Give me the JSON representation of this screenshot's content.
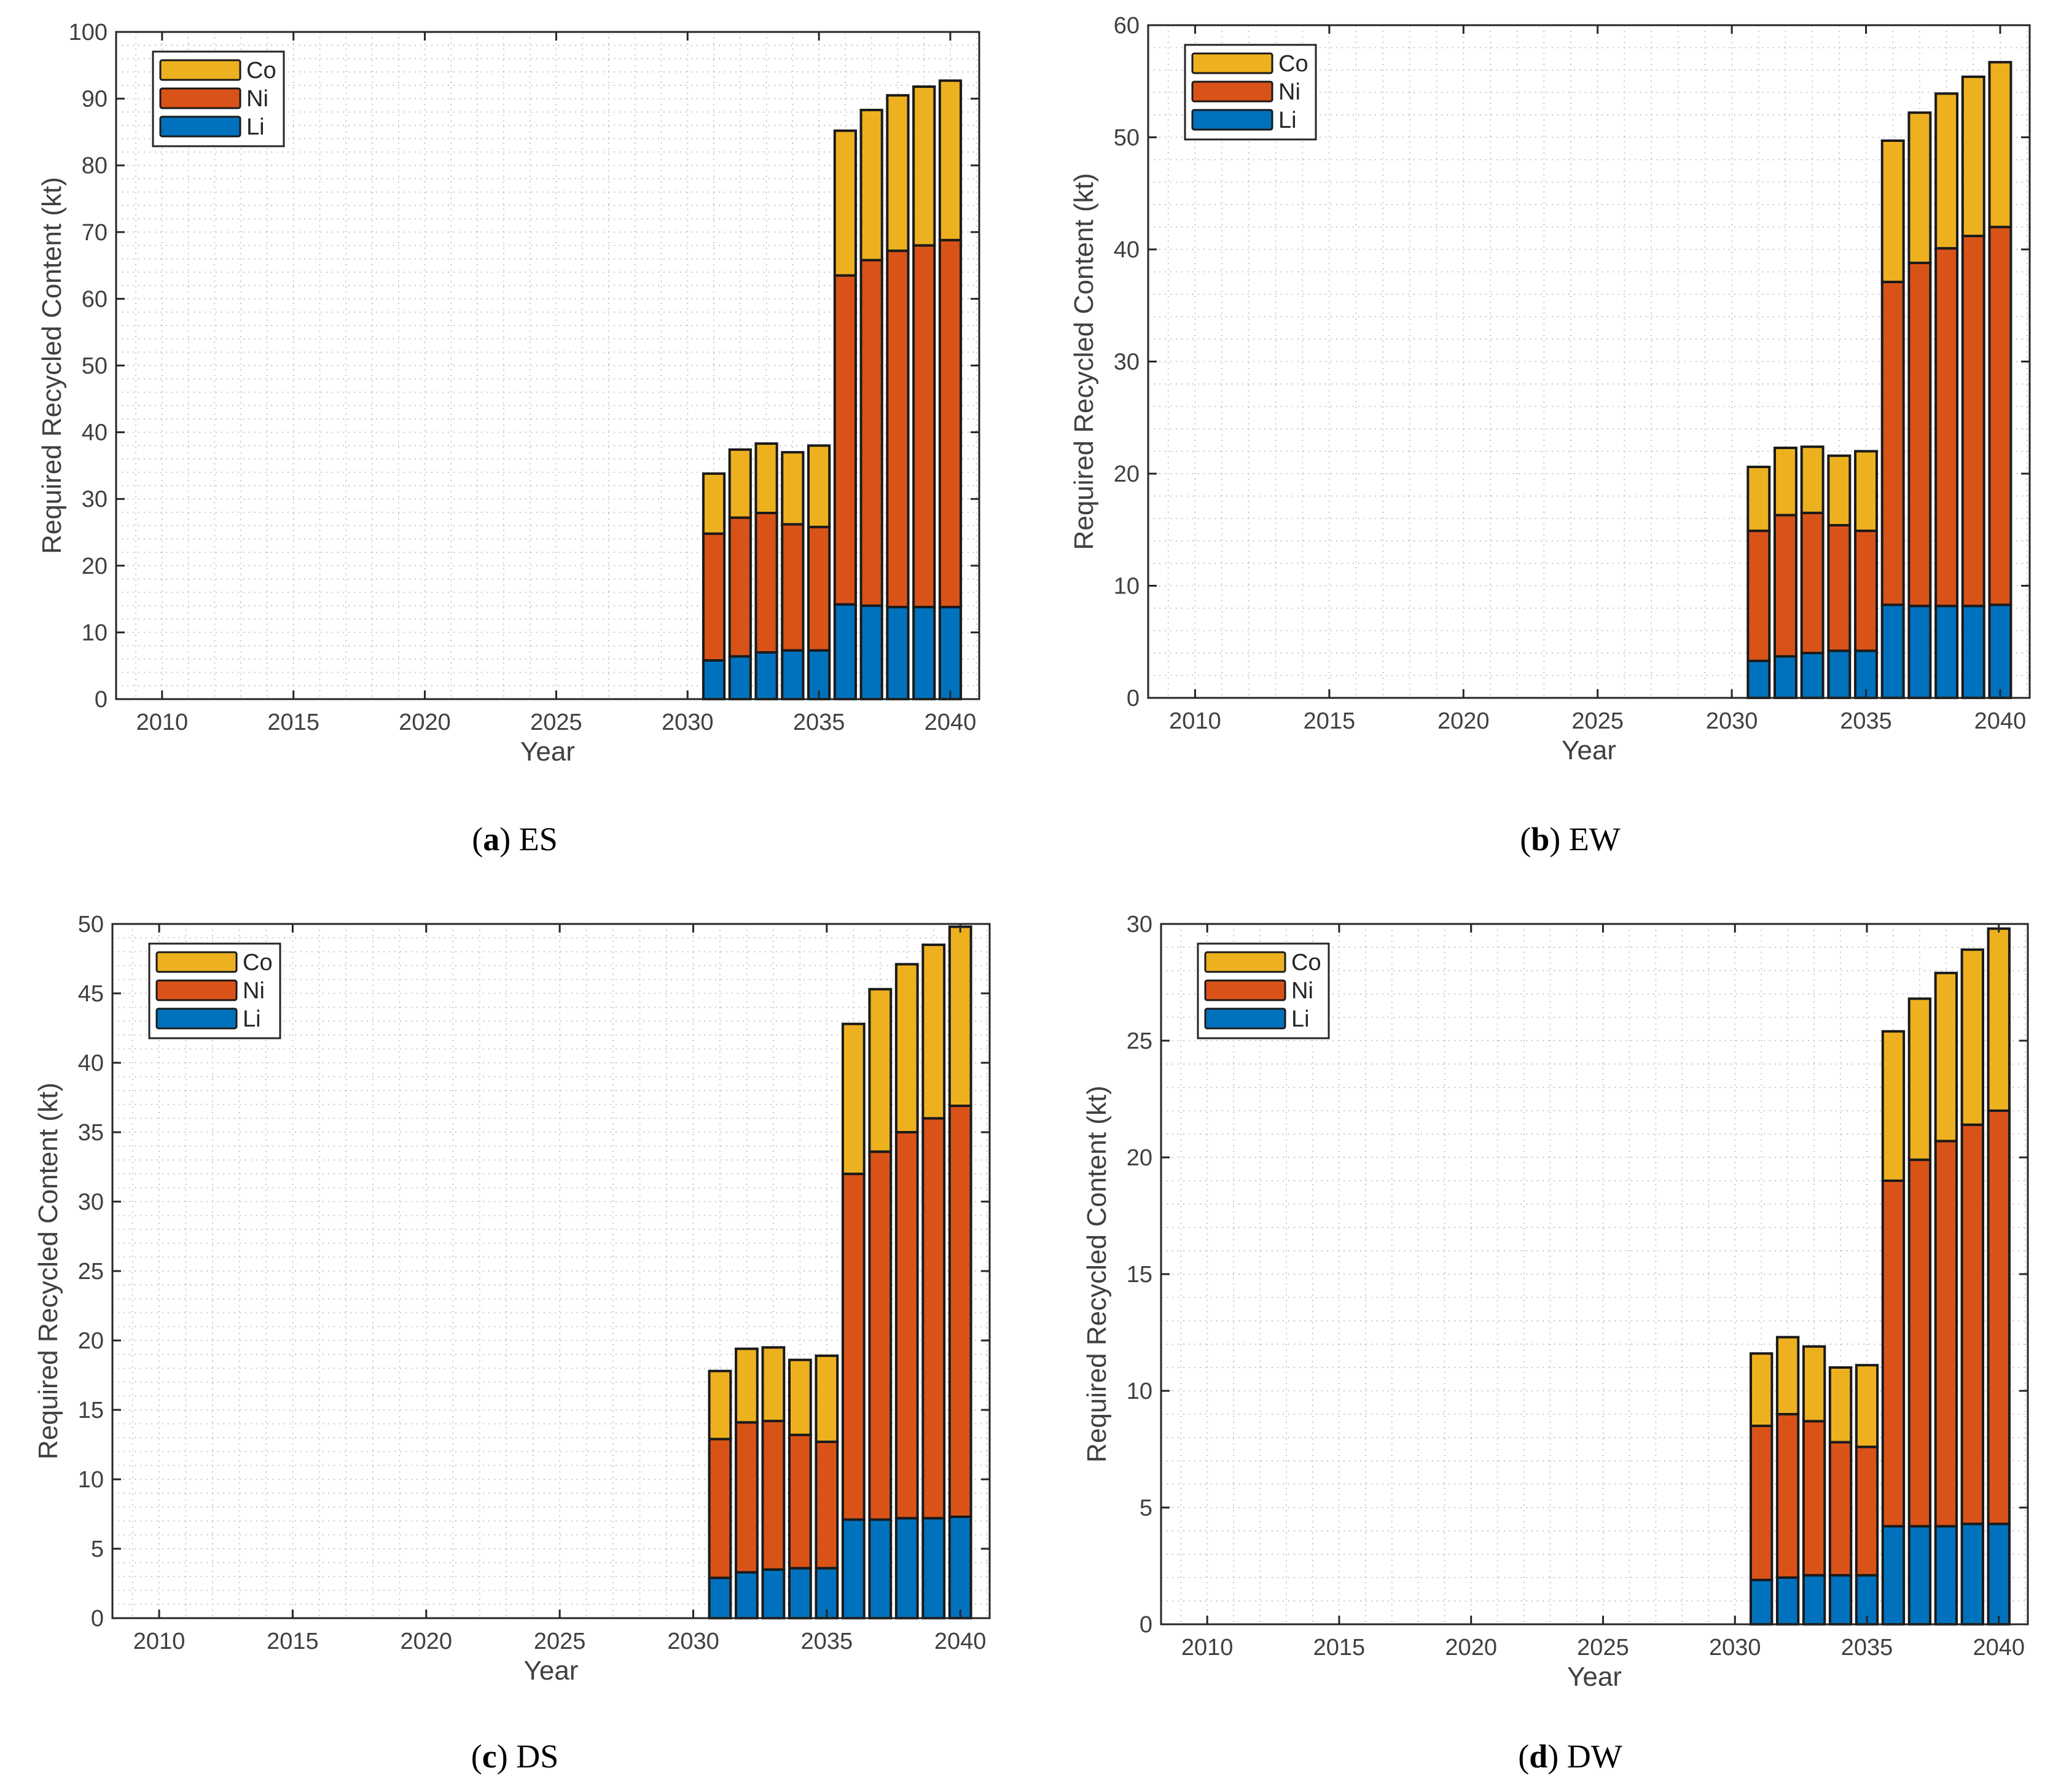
{
  "colors": {
    "Li": "#0072BD",
    "Ni": "#D95319",
    "Co": "#EDB120"
  },
  "legend_order": [
    "Co",
    "Ni",
    "Li"
  ],
  "chart_data": [
    {
      "type": "bar",
      "stacked": true,
      "caption_label": "a",
      "caption_text": "ES",
      "xlabel": "Year",
      "ylabel": "Required Recycled Content (kt)",
      "xlim": [
        2008.25,
        2041.1
      ],
      "ylim": [
        0,
        100
      ],
      "yticks": [
        0,
        10,
        20,
        30,
        40,
        50,
        60,
        70,
        80,
        90,
        100
      ],
      "xticks": [
        2010,
        2015,
        2020,
        2025,
        2030,
        2035,
        2040
      ],
      "grid": "minor-dotted",
      "legend": "top-left",
      "categories": [
        2031,
        2032,
        2033,
        2034,
        2035,
        2036,
        2037,
        2038,
        2039,
        2040
      ],
      "series": [
        {
          "name": "Li",
          "values": [
            5.8,
            6.4,
            7.0,
            7.3,
            7.3,
            14.2,
            14.0,
            13.8,
            13.8,
            13.8
          ]
        },
        {
          "name": "Ni",
          "values": [
            19.0,
            20.8,
            20.9,
            18.9,
            18.5,
            49.3,
            51.8,
            53.4,
            54.2,
            55.0
          ]
        },
        {
          "name": "Co",
          "values": [
            9.0,
            10.2,
            10.4,
            10.8,
            12.2,
            21.7,
            22.5,
            23.3,
            23.8,
            23.9
          ]
        }
      ]
    },
    {
      "type": "bar",
      "stacked": true,
      "caption_label": "b",
      "caption_text": "EW",
      "xlabel": "Year",
      "ylabel": "Required Recycled Content (kt)",
      "xlim": [
        2008.25,
        2041.1
      ],
      "ylim": [
        0,
        60
      ],
      "yticks": [
        0,
        10,
        20,
        30,
        40,
        50,
        60
      ],
      "xticks": [
        2010,
        2015,
        2020,
        2025,
        2030,
        2035,
        2040
      ],
      "grid": "minor-dotted",
      "legend": "top-left",
      "categories": [
        2031,
        2032,
        2033,
        2034,
        2035,
        2036,
        2037,
        2038,
        2039,
        2040
      ],
      "series": [
        {
          "name": "Li",
          "values": [
            3.3,
            3.7,
            4.0,
            4.2,
            4.2,
            8.3,
            8.2,
            8.2,
            8.2,
            8.3
          ]
        },
        {
          "name": "Ni",
          "values": [
            11.6,
            12.6,
            12.5,
            11.2,
            10.7,
            28.8,
            30.6,
            31.9,
            33.0,
            33.7
          ]
        },
        {
          "name": "Co",
          "values": [
            5.7,
            6.0,
            5.9,
            6.2,
            7.1,
            12.6,
            13.4,
            13.8,
            14.2,
            14.7
          ]
        }
      ]
    },
    {
      "type": "bar",
      "stacked": true,
      "caption_label": "c",
      "caption_text": "DS",
      "xlabel": "Year",
      "ylabel": "Required Recycled Content (kt)",
      "xlim": [
        2008.25,
        2041.1
      ],
      "ylim": [
        0,
        50
      ],
      "yticks": [
        0,
        5,
        10,
        15,
        20,
        25,
        30,
        35,
        40,
        45,
        50
      ],
      "xticks": [
        2010,
        2015,
        2020,
        2025,
        2030,
        2035,
        2040
      ],
      "grid": "minor-dotted",
      "legend": "top-left",
      "categories": [
        2031,
        2032,
        2033,
        2034,
        2035,
        2036,
        2037,
        2038,
        2039,
        2040
      ],
      "series": [
        {
          "name": "Li",
          "values": [
            2.9,
            3.3,
            3.5,
            3.6,
            3.6,
            7.1,
            7.1,
            7.2,
            7.2,
            7.3
          ]
        },
        {
          "name": "Ni",
          "values": [
            10.0,
            10.8,
            10.7,
            9.6,
            9.1,
            24.9,
            26.5,
            27.8,
            28.8,
            29.6
          ]
        },
        {
          "name": "Co",
          "values": [
            4.9,
            5.3,
            5.3,
            5.4,
            6.2,
            10.8,
            11.7,
            12.1,
            12.5,
            12.9
          ]
        }
      ]
    },
    {
      "type": "bar",
      "stacked": true,
      "caption_label": "d",
      "caption_text": "DW",
      "xlabel": "Year",
      "ylabel": "Required Recycled Content (kt)",
      "xlim": [
        2008.25,
        2041.1
      ],
      "ylim": [
        0,
        30
      ],
      "yticks": [
        0,
        5,
        10,
        15,
        20,
        25,
        30
      ],
      "xticks": [
        2010,
        2015,
        2020,
        2025,
        2030,
        2035,
        2040
      ],
      "grid": "minor-dotted",
      "legend": "top-left",
      "categories": [
        2031,
        2032,
        2033,
        2034,
        2035,
        2036,
        2037,
        2038,
        2039,
        2040
      ],
      "series": [
        {
          "name": "Li",
          "values": [
            1.9,
            2.0,
            2.1,
            2.1,
            2.1,
            4.2,
            4.2,
            4.2,
            4.3,
            4.3
          ]
        },
        {
          "name": "Ni",
          "values": [
            6.6,
            7.0,
            6.6,
            5.7,
            5.5,
            14.8,
            15.7,
            16.5,
            17.1,
            17.7
          ]
        },
        {
          "name": "Co",
          "values": [
            3.1,
            3.3,
            3.2,
            3.2,
            3.5,
            6.4,
            6.9,
            7.2,
            7.5,
            7.8
          ]
        }
      ]
    }
  ]
}
